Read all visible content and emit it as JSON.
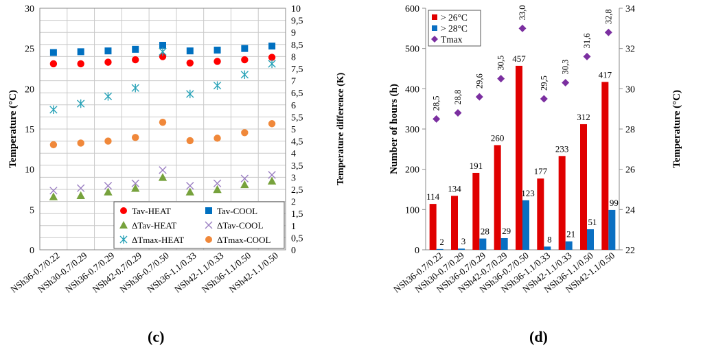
{
  "panels": {
    "c": "(c)",
    "d": "(d)"
  },
  "chart_data": [
    {
      "type": "scatter",
      "panel": "(c)",
      "categories": [
        "NSh36-0.7/0.22",
        "NSh30-0.7/0.29",
        "NSh36-0.7/0.29",
        "NSh42-0.7/0.29",
        "NSh36-0.7/0.50",
        "NSh36-1.1/0.33",
        "NSh42-1.1/0.33",
        "NSh36-1.1/0.50",
        "NSh42-1.1/0.50"
      ],
      "ylabel": "Temperature (°C)",
      "ylim": [
        0,
        30
      ],
      "yticks": [
        "0",
        "5",
        "10",
        "15",
        "20",
        "25",
        "30"
      ],
      "y2label": "Temperature difference (K)",
      "y2lim": [
        0,
        10
      ],
      "y2ticks": [
        "0",
        "0,5",
        "1",
        "1,5",
        "2",
        "2,5",
        "3",
        "3,5",
        "4",
        "4,5",
        "5",
        "5,5",
        "6",
        "6,5",
        "7",
        "7,5",
        "8",
        "8,5",
        "9",
        "9,5",
        "10"
      ],
      "grid": true,
      "legend_position": "bottom-right",
      "series": [
        {
          "name": "Tav-HEAT",
          "axis": "left",
          "marker": "circle",
          "color": "#ff0000",
          "values": [
            23.1,
            23.1,
            23.3,
            23.6,
            24.0,
            23.2,
            23.4,
            23.6,
            23.9
          ]
        },
        {
          "name": "Tav-COOL",
          "axis": "left",
          "marker": "square",
          "color": "#0070c0",
          "values": [
            24.5,
            24.6,
            24.7,
            24.9,
            25.4,
            24.7,
            24.8,
            25.0,
            25.3
          ]
        },
        {
          "name": "ΔTav-HEAT",
          "axis": "right",
          "marker": "triangle",
          "color": "#77a23d",
          "values": [
            2.2,
            2.25,
            2.4,
            2.55,
            3.0,
            2.4,
            2.5,
            2.7,
            2.85
          ]
        },
        {
          "name": "ΔTav-COOL",
          "axis": "right",
          "marker": "x",
          "color": "#9b7fc2",
          "values": [
            2.45,
            2.55,
            2.65,
            2.75,
            3.3,
            2.65,
            2.75,
            2.95,
            3.1
          ]
        },
        {
          "name": "ΔTmax-HEAT",
          "axis": "right",
          "marker": "star",
          "color": "#2aa3b8",
          "values": [
            5.8,
            6.05,
            6.35,
            6.7,
            8.2,
            6.45,
            6.8,
            7.25,
            7.7
          ]
        },
        {
          "name": "ΔTmax-COOL",
          "axis": "right",
          "marker": "circle",
          "color": "#f0883a",
          "values": [
            4.35,
            4.42,
            4.5,
            4.65,
            5.28,
            4.52,
            4.62,
            4.85,
            5.22
          ]
        }
      ]
    },
    {
      "type": "bar",
      "panel": "(d)",
      "categories": [
        "NSh36-0.7/0.22",
        "NSh30-0.7/0.29",
        "NSh36-0.7/0.29",
        "NSh42-0.7/0.29",
        "NSh36-0.7/0.50",
        "NSh36-1.1/0.33",
        "NSh42-1.1/0.33",
        "NSh36-1.1/0.50",
        "NSh42-1.1/0.50"
      ],
      "ylabel": "Number of hours (h)",
      "ylim": [
        0,
        600
      ],
      "yticks": [
        "0",
        "100",
        "200",
        "300",
        "400",
        "500",
        "600"
      ],
      "y2label": "Temperature (°C)",
      "y2lim": [
        22,
        34
      ],
      "y2ticks": [
        "22",
        "24",
        "26",
        "28",
        "30",
        "32",
        "34"
      ],
      "grid": false,
      "legend_position": "top-left",
      "series": [
        {
          "name": "> 26°C",
          "axis": "left",
          "kind": "bar",
          "color": "#e00000",
          "values": [
            114,
            134,
            191,
            260,
            457,
            177,
            233,
            312,
            417
          ],
          "labels": [
            "114",
            "134",
            "191",
            "260",
            "457",
            "177",
            "233",
            "312",
            "417"
          ]
        },
        {
          "name": "> 28°C",
          "axis": "left",
          "kind": "bar",
          "color": "#0a6fc2",
          "values": [
            2,
            3,
            28,
            29,
            123,
            8,
            21,
            51,
            99
          ],
          "labels": [
            "2",
            "3",
            "28",
            "29",
            "123",
            "8",
            "21",
            "51",
            "99"
          ]
        },
        {
          "name": "Tmax",
          "axis": "right",
          "kind": "diamond",
          "color": "#7b2fa0",
          "values": [
            28.5,
            28.8,
            29.6,
            30.5,
            33.0,
            29.5,
            30.3,
            31.6,
            32.8
          ],
          "labels": [
            "28,5",
            "28,8",
            "29,6",
            "30,5",
            "33,0",
            "29,5",
            "30,3",
            "31,6",
            "32,8"
          ]
        }
      ]
    }
  ]
}
